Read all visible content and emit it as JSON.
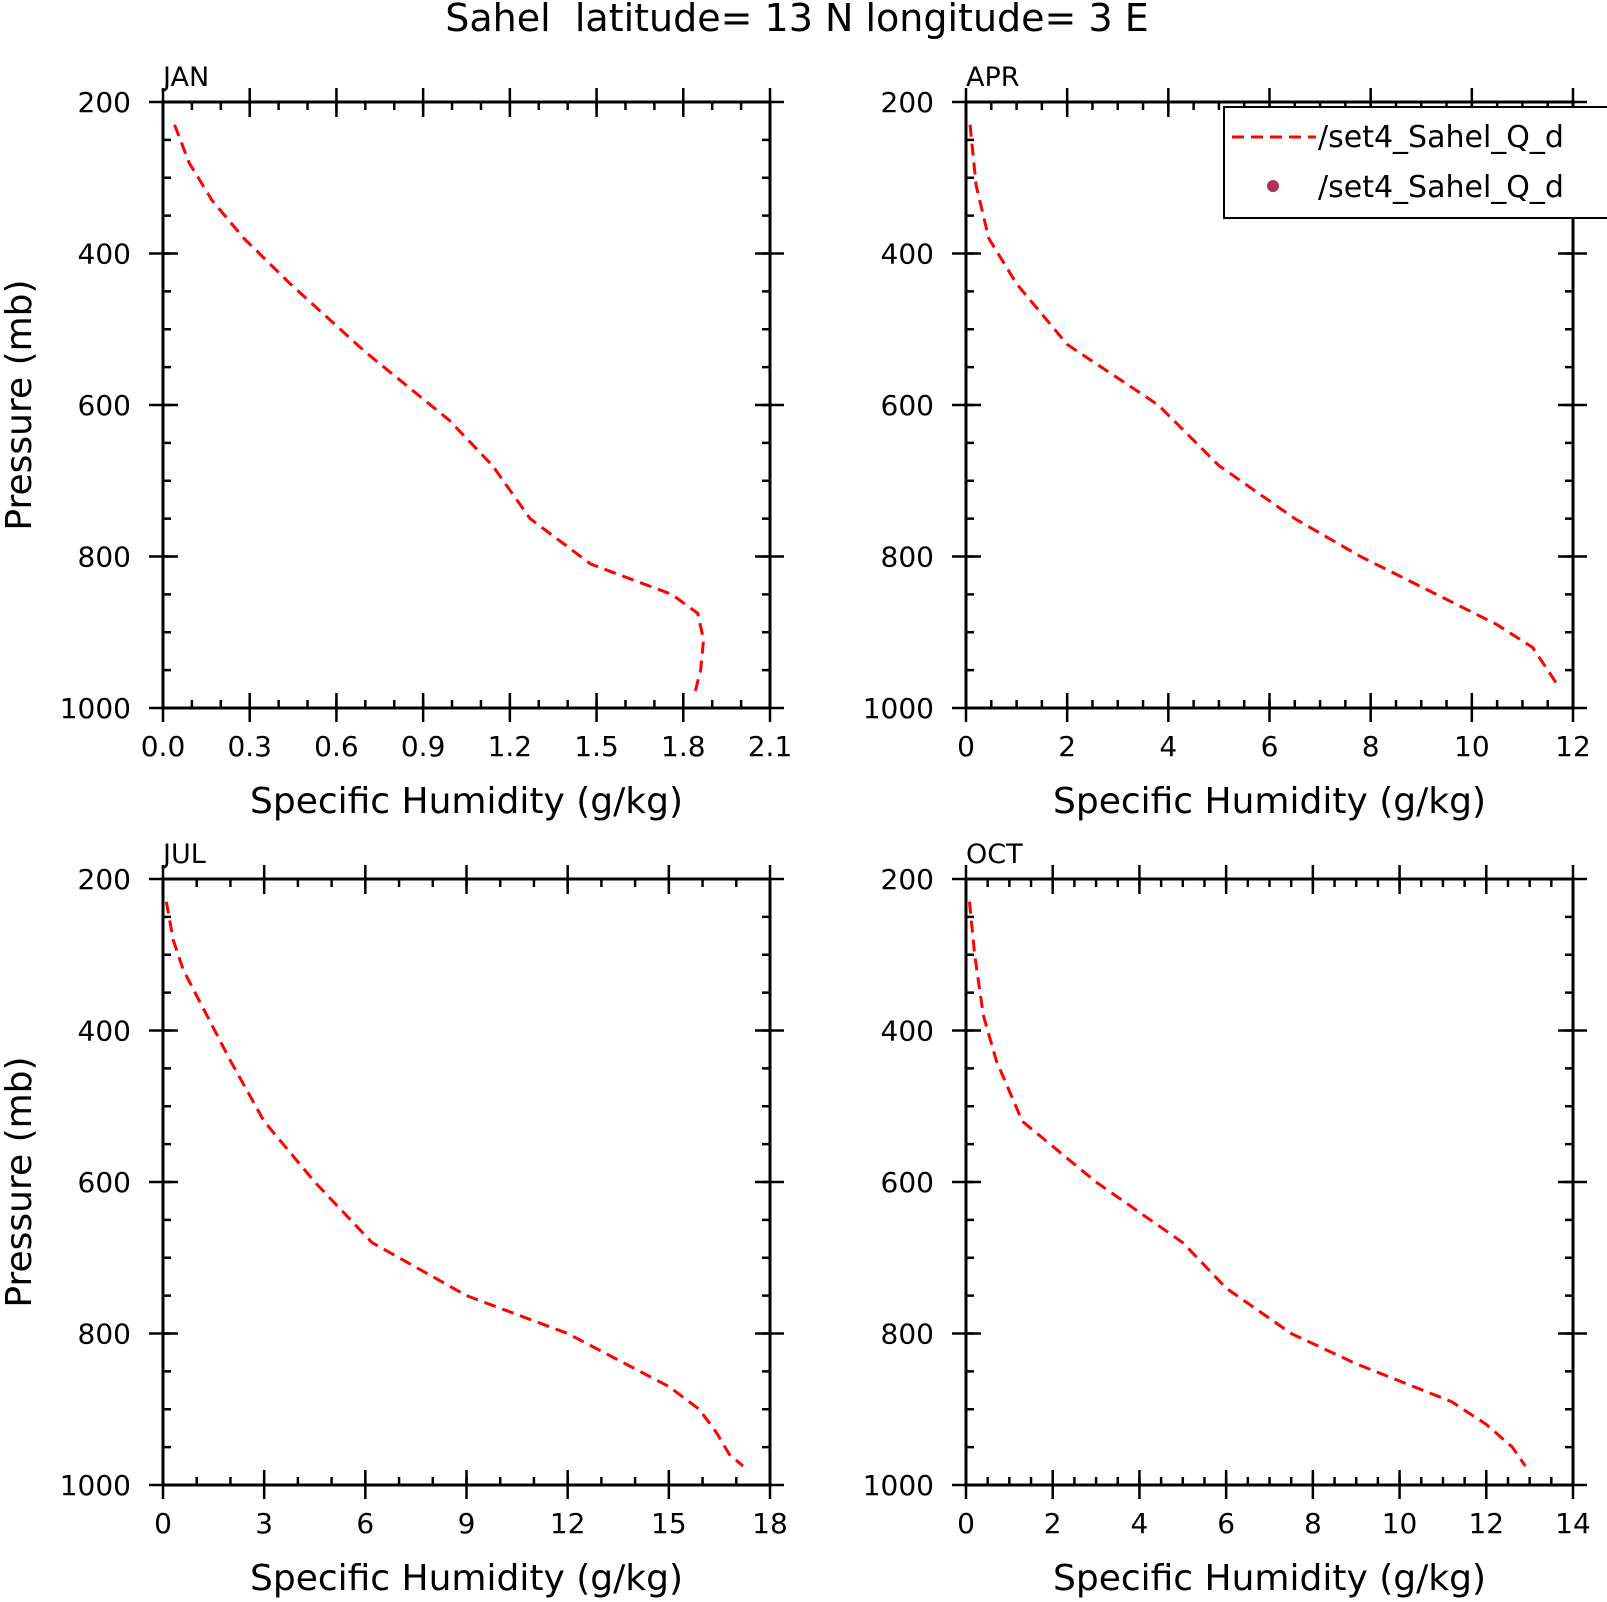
{
  "figure": {
    "title": "Sahel  latitude= 13 N longitude= 3 E",
    "legend": [
      {
        "label": "/set4_Sahel_Q_d",
        "style": "dashed-line",
        "color": "#ff0000"
      },
      {
        "label": "/set4_Sahel_Q_d",
        "style": "dot-marker",
        "color": "#b0305a"
      }
    ]
  },
  "chart_data": [
    {
      "type": "line",
      "title": "JAN",
      "xlabel": "Specific Humidity (g/kg)",
      "ylabel": "Pressure (mb)",
      "xlim": [
        0,
        2.1
      ],
      "ylim": [
        200,
        1000
      ],
      "y_inverted": true,
      "xticks": [
        0.0,
        0.3,
        0.6,
        0.9,
        1.2,
        1.5,
        1.8,
        2.1
      ],
      "xtick_labels": [
        "0.0",
        "0.3",
        "0.6",
        "0.9",
        "1.2",
        "1.5",
        "1.8",
        "2.1"
      ],
      "x_minor_step": 0.1,
      "yticks": [
        200,
        400,
        600,
        800,
        1000
      ],
      "ytick_labels": [
        "200",
        "400",
        "600",
        "800",
        "1000"
      ],
      "y_minor_step": 50,
      "series": [
        {
          "color": "#ff0000",
          "style": "dashed",
          "x": [
            0.04,
            0.09,
            0.17,
            0.28,
            0.44,
            0.7,
            0.99,
            1.14,
            1.27,
            1.48,
            1.76,
            1.85,
            1.87,
            1.86,
            1.84
          ],
          "y": [
            230,
            280,
            330,
            380,
            440,
            530,
            620,
            680,
            750,
            810,
            850,
            875,
            910,
            950,
            980
          ]
        }
      ]
    },
    {
      "type": "line",
      "title": "APR",
      "xlabel": "Specific Humidity (g/kg)",
      "ylabel": "",
      "xlim": [
        0,
        12
      ],
      "ylim": [
        200,
        1000
      ],
      "y_inverted": true,
      "xticks": [
        0,
        2,
        4,
        6,
        8,
        10,
        12
      ],
      "xtick_labels": [
        "0",
        "2",
        "4",
        "6",
        "8",
        "10",
        "12"
      ],
      "x_minor_step": 0.5,
      "yticks": [
        200,
        400,
        600,
        800,
        1000
      ],
      "ytick_labels": [
        "200",
        "400",
        "600",
        "800",
        "1000"
      ],
      "y_minor_step": 50,
      "series": [
        {
          "color": "#ff0000",
          "style": "dashed",
          "x": [
            0.08,
            0.2,
            0.45,
            1.0,
            2.0,
            3.8,
            5.0,
            6.5,
            7.8,
            9.0,
            10.5,
            11.2,
            11.7
          ],
          "y": [
            230,
            310,
            380,
            440,
            520,
            600,
            680,
            750,
            800,
            840,
            890,
            920,
            970
          ]
        }
      ]
    },
    {
      "type": "line",
      "title": "JUL",
      "xlabel": "Specific Humidity (g/kg)",
      "ylabel": "Pressure (mb)",
      "xlim": [
        0,
        18
      ],
      "ylim": [
        200,
        1000
      ],
      "y_inverted": true,
      "xticks": [
        0,
        3,
        6,
        9,
        12,
        15,
        18
      ],
      "xtick_labels": [
        "0",
        "3",
        "6",
        "9",
        "12",
        "15",
        "18"
      ],
      "x_minor_step": 1,
      "yticks": [
        200,
        400,
        600,
        800,
        1000
      ],
      "ytick_labels": [
        "200",
        "400",
        "600",
        "800",
        "1000"
      ],
      "y_minor_step": 50,
      "series": [
        {
          "color": "#ff0000",
          "style": "dashed",
          "x": [
            0.1,
            0.3,
            0.6,
            1.3,
            2.0,
            3.0,
            4.5,
            6.2,
            9.0,
            12.0,
            15.0,
            15.9,
            16.4,
            16.8,
            17.2
          ],
          "y": [
            230,
            280,
            320,
            380,
            440,
            520,
            600,
            680,
            750,
            800,
            870,
            900,
            930,
            960,
            975
          ]
        }
      ]
    },
    {
      "type": "line",
      "title": "OCT",
      "xlabel": "Specific Humidity (g/kg)",
      "ylabel": "",
      "xlim": [
        0,
        14
      ],
      "ylim": [
        200,
        1000
      ],
      "y_inverted": true,
      "xticks": [
        0,
        2,
        4,
        6,
        8,
        10,
        12,
        14
      ],
      "xtick_labels": [
        "0",
        "2",
        "4",
        "6",
        "8",
        "10",
        "12",
        "14"
      ],
      "x_minor_step": 0.5,
      "yticks": [
        200,
        400,
        600,
        800,
        1000
      ],
      "ytick_labels": [
        "200",
        "400",
        "600",
        "800",
        "1000"
      ],
      "y_minor_step": 50,
      "series": [
        {
          "color": "#ff0000",
          "style": "dashed",
          "x": [
            0.08,
            0.2,
            0.4,
            0.7,
            1.3,
            3.0,
            5.0,
            6.0,
            7.5,
            9.0,
            11.2,
            12.0,
            12.6,
            12.9
          ],
          "y": [
            230,
            300,
            380,
            440,
            520,
            600,
            680,
            740,
            800,
            840,
            890,
            920,
            950,
            975
          ]
        }
      ]
    }
  ]
}
